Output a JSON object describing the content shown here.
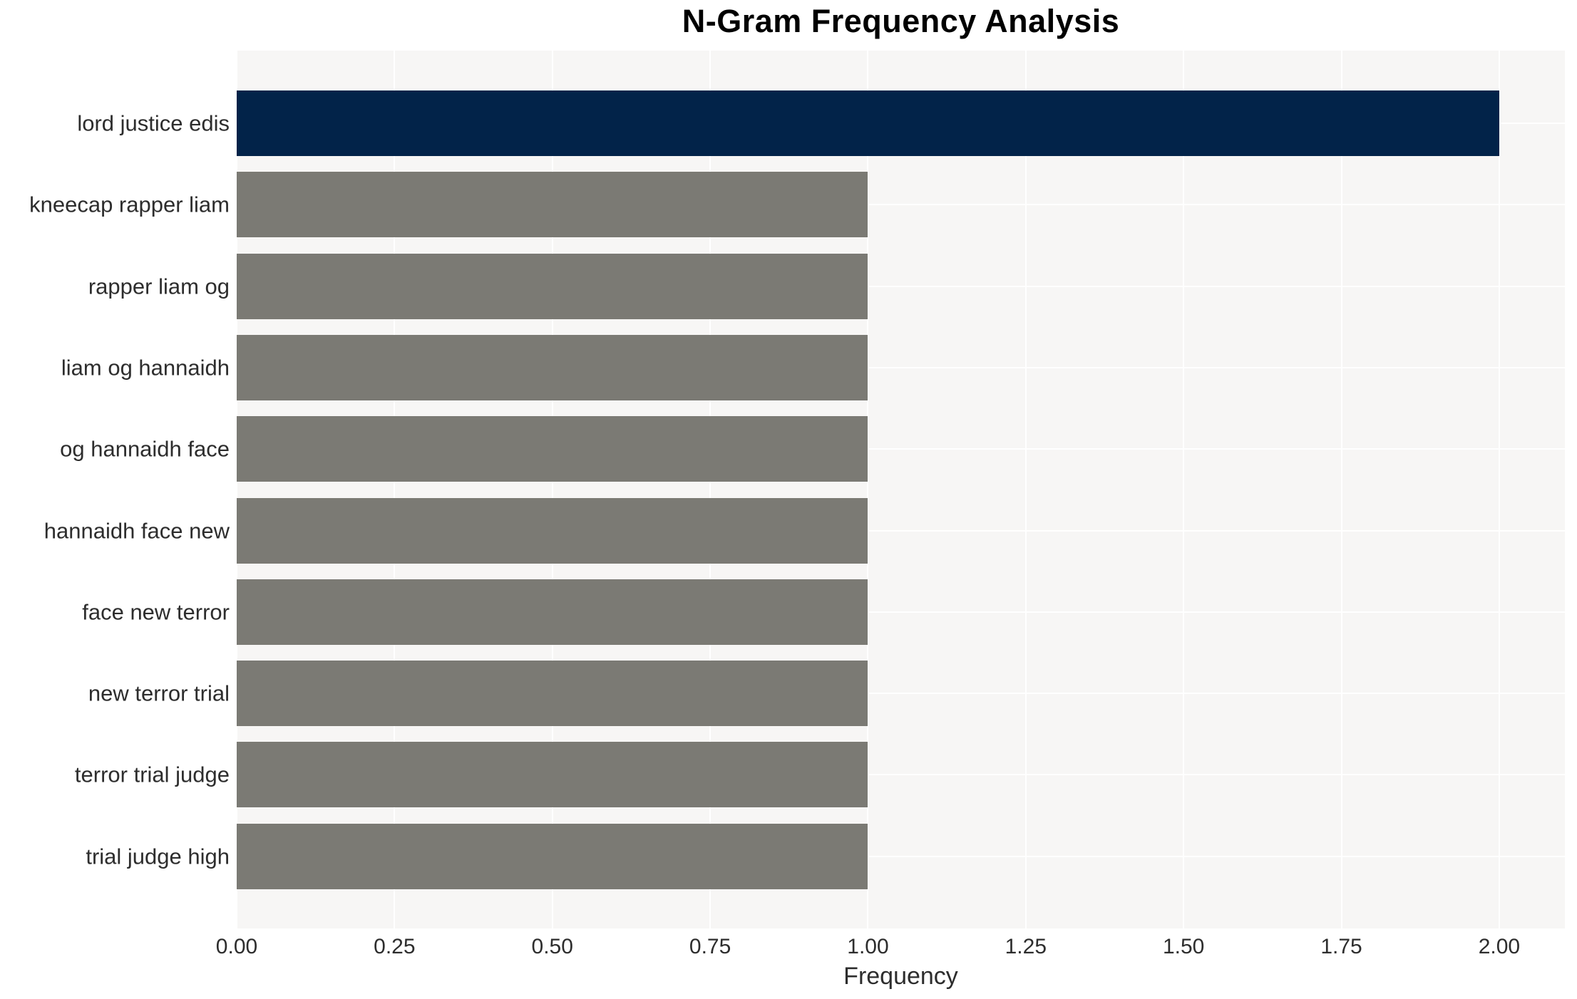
{
  "chart_data": {
    "type": "bar",
    "orientation": "horizontal",
    "title": "N-Gram Frequency Analysis",
    "xlabel": "Frequency",
    "ylabel": "",
    "categories": [
      "lord justice edis",
      "kneecap rapper liam",
      "rapper liam og",
      "liam og hannaidh",
      "og hannaidh face",
      "hannaidh face new",
      "face new terror",
      "new terror trial",
      "terror trial judge",
      "trial judge high"
    ],
    "values": [
      2,
      1,
      1,
      1,
      1,
      1,
      1,
      1,
      1,
      1
    ],
    "xticks": [
      0,
      0.25,
      0.5,
      0.75,
      1.0,
      1.25,
      1.5,
      1.75,
      2.0
    ],
    "xtick_labels": [
      "0.00",
      "0.25",
      "0.50",
      "0.75",
      "1.00",
      "1.25",
      "1.50",
      "1.75",
      "2.00"
    ],
    "xlim": [
      0,
      2.1
    ],
    "grid": true,
    "legend": false,
    "bar_colors": [
      "#022349",
      "#7b7a74",
      "#7b7a74",
      "#7b7a74",
      "#7b7a74",
      "#7b7a74",
      "#7b7a74",
      "#7b7a74",
      "#7b7a74",
      "#7b7a74"
    ],
    "highlight_color": "#022349",
    "default_bar_color": "#7b7a74",
    "plot_background": "#f7f6f5",
    "grid_color": "#ffffff",
    "text_color": "#2d2d2d"
  }
}
